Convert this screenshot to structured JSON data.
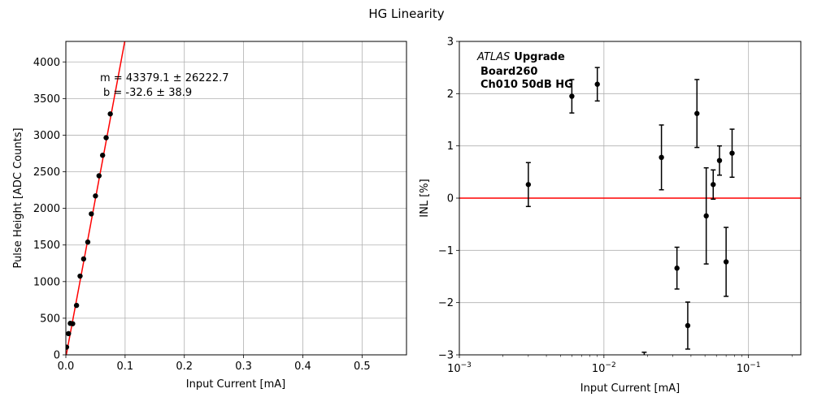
{
  "figure": {
    "title": "HG Linearity"
  },
  "chart_data": [
    {
      "type": "scatter",
      "xlabel": "Input Current [mA]",
      "ylabel": "Pulse Height [ADC Counts]",
      "xlim": [
        0,
        0.575
      ],
      "ylim": [
        0,
        4280
      ],
      "xscale": "linear",
      "grid": true,
      "xticks": [
        {
          "v": 0.0,
          "label": "0.0"
        },
        {
          "v": 0.1,
          "label": "0.1"
        },
        {
          "v": 0.2,
          "label": "0.2"
        },
        {
          "v": 0.3,
          "label": "0.3"
        },
        {
          "v": 0.4,
          "label": "0.4"
        },
        {
          "v": 0.5,
          "label": "0.5"
        }
      ],
      "yticks": [
        {
          "v": 0,
          "label": "0"
        },
        {
          "v": 500,
          "label": "500"
        },
        {
          "v": 1000,
          "label": "1000"
        },
        {
          "v": 1500,
          "label": "1500"
        },
        {
          "v": 2000,
          "label": "2000"
        },
        {
          "v": 2500,
          "label": "2500"
        },
        {
          "v": 3000,
          "label": "3000"
        },
        {
          "v": 3500,
          "label": "3500"
        },
        {
          "v": 4000,
          "label": "4000"
        }
      ],
      "points": [
        {
          "x": 0.0012,
          "y": 105
        },
        {
          "x": 0.0045,
          "y": 290
        },
        {
          "x": 0.0075,
          "y": 430
        },
        {
          "x": 0.0115,
          "y": 425
        },
        {
          "x": 0.018,
          "y": 675
        },
        {
          "x": 0.024,
          "y": 1075
        },
        {
          "x": 0.03,
          "y": 1310
        },
        {
          "x": 0.037,
          "y": 1540
        },
        {
          "x": 0.043,
          "y": 1925
        },
        {
          "x": 0.05,
          "y": 2170
        },
        {
          "x": 0.056,
          "y": 2445
        },
        {
          "x": 0.062,
          "y": 2725
        },
        {
          "x": 0.068,
          "y": 2965
        },
        {
          "x": 0.075,
          "y": 3290
        }
      ],
      "fit": {
        "slope": 43379.1,
        "intercept": -32.6,
        "color": "#ff0000"
      },
      "annotations": [
        "m = 43379.1 ± 26222.7",
        "b = -32.6 ± 38.9"
      ],
      "marker_color": "#000000"
    },
    {
      "type": "scatter",
      "xlabel": "Input Current [mA]",
      "ylabel": "INL [%]",
      "xlim": [
        0.001,
        0.23
      ],
      "ylim": [
        -3,
        3
      ],
      "xscale": "log",
      "grid": true,
      "xticks": [
        {
          "v": 0.001,
          "base": "10",
          "exp": "−3"
        },
        {
          "v": 0.01,
          "base": "10",
          "exp": "−2"
        },
        {
          "v": 0.1,
          "base": "10",
          "exp": "−1"
        }
      ],
      "yticks": [
        {
          "v": -3,
          "label": "−3"
        },
        {
          "v": -2,
          "label": "−2"
        },
        {
          "v": -1,
          "label": "−1"
        },
        {
          "v": 0,
          "label": "0"
        },
        {
          "v": 1,
          "label": "1"
        },
        {
          "v": 2,
          "label": "2"
        },
        {
          "v": 3,
          "label": "3"
        }
      ],
      "points": [
        {
          "x": 0.003,
          "y": 0.26,
          "err": 0.42
        },
        {
          "x": 0.006,
          "y": 1.95,
          "err": 0.32
        },
        {
          "x": 0.009,
          "y": 2.18,
          "err": 0.32
        },
        {
          "x": 0.019,
          "y": -3.05,
          "err": 0.1
        },
        {
          "x": 0.025,
          "y": 0.78,
          "err": 0.62
        },
        {
          "x": 0.032,
          "y": -1.34,
          "err": 0.4
        },
        {
          "x": 0.038,
          "y": -2.44,
          "err": 0.45
        },
        {
          "x": 0.044,
          "y": 1.62,
          "err": 0.65
        },
        {
          "x": 0.051,
          "y": -0.34,
          "err": 0.92
        },
        {
          "x": 0.057,
          "y": 0.26,
          "err": 0.28
        },
        {
          "x": 0.063,
          "y": 0.72,
          "err": 0.28
        },
        {
          "x": 0.07,
          "y": -1.22,
          "err": 0.66
        },
        {
          "x": 0.077,
          "y": 0.86,
          "err": 0.46
        }
      ],
      "reference_line": {
        "y": 0,
        "color": "#ff0000"
      },
      "annotations": {
        "experiment_italic": "ATLAS",
        "experiment_bold": "Upgrade",
        "board": "Board260",
        "channel": "Ch010 50dB HG"
      },
      "marker_color": "#000000"
    }
  ]
}
